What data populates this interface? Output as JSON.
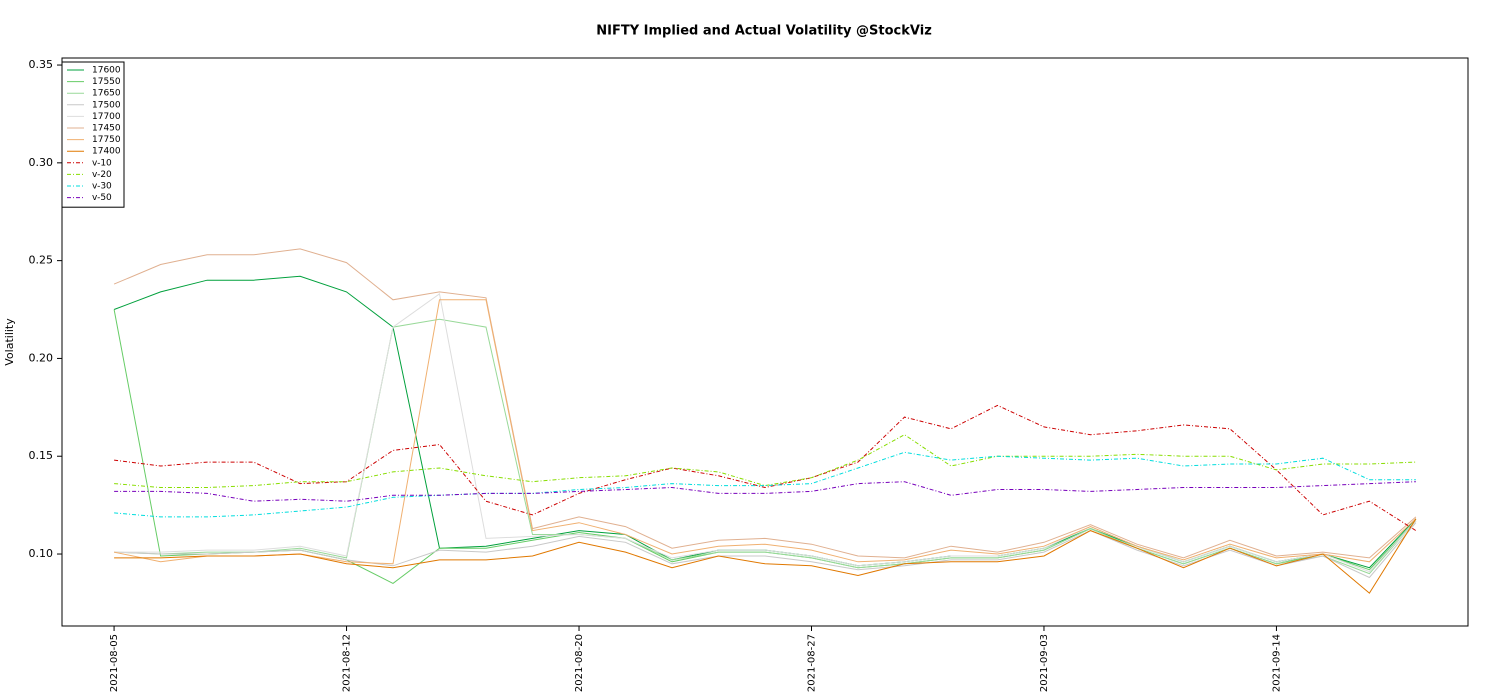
{
  "chart_data": {
    "type": "line",
    "title": "NIFTY Implied and Actual Volatility @StockViz",
    "y_label": "Volatility",
    "categories": [
      "2021-08-05",
      null,
      null,
      null,
      null,
      "2021-08-12",
      null,
      null,
      null,
      null,
      "2021-08-20",
      null,
      null,
      null,
      null,
      "2021-08-27",
      null,
      null,
      null,
      null,
      "2021-09-03",
      null,
      null,
      null,
      null,
      "2021-09-14",
      null,
      null,
      null
    ],
    "ylim": [
      0.0632,
      0.3536
    ],
    "yticks": [
      {
        "value": 0.1,
        "label": "0.10"
      },
      0.15,
      {
        "value": 0.2,
        "label": "0.20"
      },
      0.25,
      {
        "value": 0.3,
        "label": "0.30"
      },
      0.35
    ],
    "grid": false,
    "legend": "top-left",
    "series": [
      {
        "name": "17600",
        "color": "#00A03C",
        "linestyle": "solid",
        "values": [
          0.225,
          0.234,
          0.24,
          0.24,
          0.242,
          0.234,
          0.216,
          0.103,
          0.104,
          0.108,
          0.112,
          0.11,
          0.097,
          0.102,
          0.102,
          0.099,
          0.094,
          0.096,
          0.099,
          0.099,
          0.103,
          0.113,
          0.104,
          0.096,
          0.104,
          0.096,
          0.1,
          0.093,
          0.118
        ]
      },
      {
        "name": "17550",
        "color": "#66CC66",
        "linestyle": "solid",
        "values": [
          0.225,
          0.099,
          0.1,
          0.101,
          0.102,
          0.097,
          0.085,
          0.103,
          0.103,
          0.107,
          0.111,
          0.108,
          0.096,
          0.101,
          0.101,
          0.098,
          0.093,
          0.095,
          0.098,
          0.098,
          0.102,
          0.113,
          0.103,
          0.095,
          0.103,
          0.095,
          0.1,
          0.092,
          0.117
        ]
      },
      {
        "name": "17650",
        "color": "#99D999",
        "linestyle": "solid",
        "values": [
          0.101,
          0.1,
          0.101,
          0.101,
          0.103,
          0.098,
          0.216,
          0.22,
          0.216,
          0.11,
          0.11,
          0.108,
          0.097,
          0.101,
          0.101,
          0.098,
          0.093,
          0.095,
          0.098,
          0.098,
          0.102,
          0.113,
          0.103,
          0.095,
          0.103,
          0.095,
          0.099,
          0.09,
          0.117
        ]
      },
      {
        "name": "17500",
        "color": "#C8C8C8",
        "linestyle": "solid",
        "values": [
          0.101,
          0.1,
          0.1,
          0.101,
          0.102,
          0.097,
          0.094,
          0.102,
          0.101,
          0.104,
          0.109,
          0.106,
          0.095,
          0.099,
          0.099,
          0.096,
          0.092,
          0.094,
          0.097,
          0.097,
          0.101,
          0.112,
          0.102,
          0.094,
          0.102,
          0.094,
          0.099,
          0.088,
          0.116
        ]
      },
      {
        "name": "17700",
        "color": "#DDDDDD",
        "linestyle": "solid",
        "values": [
          0.101,
          0.101,
          0.102,
          0.102,
          0.104,
          0.099,
          0.216,
          0.233,
          0.108,
          0.109,
          0.11,
          0.108,
          0.098,
          0.102,
          0.102,
          0.099,
          0.094,
          0.096,
          0.099,
          0.099,
          0.103,
          0.114,
          0.104,
          0.096,
          0.104,
          0.096,
          0.1,
          0.091,
          0.117
        ]
      },
      {
        "name": "17450",
        "color": "#E0B090",
        "linestyle": "solid",
        "values": [
          0.238,
          0.248,
          0.253,
          0.253,
          0.256,
          0.249,
          0.23,
          0.234,
          0.231,
          0.113,
          0.119,
          0.114,
          0.103,
          0.107,
          0.108,
          0.105,
          0.099,
          0.098,
          0.104,
          0.101,
          0.106,
          0.115,
          0.105,
          0.098,
          0.107,
          0.099,
          0.101,
          0.098,
          0.119
        ]
      },
      {
        "name": "17750",
        "color": "#F0B070",
        "linestyle": "solid",
        "values": [
          0.101,
          0.096,
          0.099,
          0.099,
          0.1,
          0.096,
          0.095,
          0.23,
          0.23,
          0.112,
          0.116,
          0.11,
          0.1,
          0.104,
          0.105,
          0.102,
          0.096,
          0.097,
          0.102,
          0.1,
          0.104,
          0.114,
          0.104,
          0.097,
          0.105,
          0.098,
          0.1,
          0.096,
          0.118
        ]
      },
      {
        "name": "17400",
        "color": "#E07800",
        "linestyle": "solid",
        "values": [
          0.098,
          0.098,
          0.099,
          0.099,
          0.1,
          0.095,
          0.093,
          0.097,
          0.097,
          0.099,
          0.106,
          0.101,
          0.093,
          0.099,
          0.095,
          0.094,
          0.089,
          0.095,
          0.096,
          0.096,
          0.099,
          0.112,
          0.103,
          0.093,
          0.103,
          0.094,
          0.1,
          0.08,
          0.118
        ]
      },
      {
        "name": "v-10",
        "color": "#CC0000",
        "linestyle": "dashed",
        "values": [
          0.148,
          0.145,
          0.147,
          0.147,
          0.136,
          0.137,
          0.153,
          0.156,
          0.127,
          0.12,
          0.131,
          0.138,
          0.144,
          0.14,
          0.134,
          0.139,
          0.147,
          0.17,
          0.164,
          0.176,
          0.165,
          0.161,
          0.163,
          0.166,
          0.164,
          0.143,
          0.12,
          0.127,
          0.112
        ]
      },
      {
        "name": "v-20",
        "color": "#88DD00",
        "linestyle": "dashed",
        "values": [
          0.136,
          0.134,
          0.134,
          0.135,
          0.137,
          0.137,
          0.142,
          0.144,
          0.14,
          0.137,
          0.139,
          0.14,
          0.144,
          0.142,
          0.135,
          0.139,
          0.148,
          0.161,
          0.145,
          0.15,
          0.15,
          0.15,
          0.151,
          0.15,
          0.15,
          0.143,
          0.146,
          0.146,
          0.147
        ]
      },
      {
        "name": "v-30",
        "color": "#00DDDD",
        "linestyle": "dashed",
        "values": [
          0.121,
          0.119,
          0.119,
          0.12,
          0.122,
          0.124,
          0.129,
          0.13,
          0.131,
          0.131,
          0.133,
          0.134,
          0.136,
          0.135,
          0.135,
          0.136,
          0.144,
          0.152,
          0.148,
          0.15,
          0.149,
          0.148,
          0.149,
          0.145,
          0.146,
          0.146,
          0.149,
          0.138,
          0.138
        ]
      },
      {
        "name": "v-50",
        "color": "#7700BB",
        "linestyle": "dashed",
        "values": [
          0.132,
          0.132,
          0.131,
          0.127,
          0.128,
          0.127,
          0.13,
          0.13,
          0.131,
          0.131,
          0.132,
          0.133,
          0.134,
          0.131,
          0.131,
          0.132,
          0.136,
          0.137,
          0.13,
          0.133,
          0.133,
          0.132,
          0.133,
          0.134,
          0.134,
          0.134,
          0.135,
          0.136,
          0.137
        ]
      }
    ]
  }
}
